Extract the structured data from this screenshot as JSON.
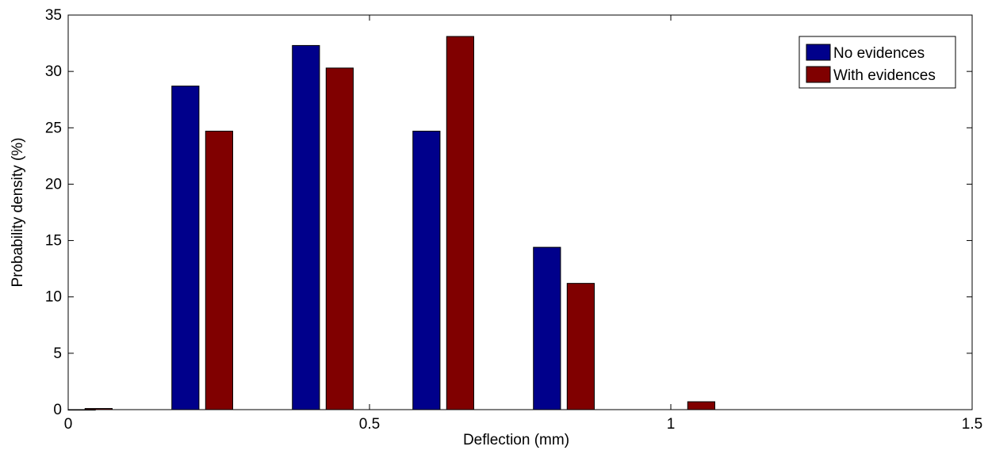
{
  "chart_data": {
    "type": "bar",
    "xlabel": "Deflection (mm)",
    "ylabel": "Probability density (%)",
    "xlim": [
      0,
      1.5
    ],
    "ylim": [
      0,
      35
    ],
    "xticks": [
      0,
      0.5,
      1,
      1.5
    ],
    "xtick_labels": [
      "0",
      "0.5",
      "1",
      "1.5"
    ],
    "yticks": [
      0,
      5,
      10,
      15,
      20,
      25,
      30,
      35
    ],
    "ytick_labels": [
      "0",
      "5",
      "10",
      "15",
      "20",
      "25",
      "30",
      "35"
    ],
    "grid": false,
    "legend_position": "top-right",
    "bar_width": 0.045,
    "series": [
      {
        "name": "No evidences",
        "color": "#00008B",
        "x": [
          0.0,
          0.172,
          0.372,
          0.572,
          0.772
        ],
        "values": [
          0.0,
          28.7,
          32.3,
          24.7,
          14.4
        ]
      },
      {
        "name": "With evidences",
        "color": "#800000",
        "x": [
          0.028,
          0.228,
          0.428,
          0.628,
          0.828,
          1.028
        ],
        "values": [
          0.1,
          24.7,
          30.3,
          33.1,
          11.2,
          0.7
        ]
      }
    ]
  }
}
